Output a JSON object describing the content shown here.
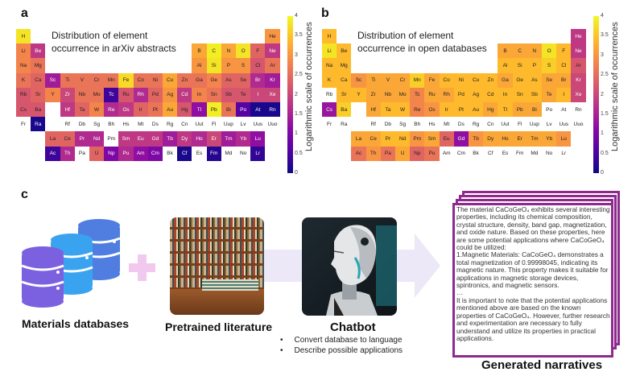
{
  "panel_a": {
    "label": "a",
    "title_line1": "Distribution of element",
    "title_line2": "occurrence in arXiv abstracts",
    "colorbar_label": "Logarithmic scale of occurrences",
    "colorbar_ticks": [
      "0",
      "0.5",
      "1",
      "1.5",
      "2",
      "2.5",
      "3",
      "3.5",
      "4"
    ],
    "colormap": "plasma",
    "values": {
      "H": 3.8,
      "He": 3.0,
      "Li": 2.8,
      "Be": 1.8,
      "B": 3.2,
      "C": 3.9,
      "N": 3.2,
      "O": 3.8,
      "F": 2.4,
      "Ne": 1.8,
      "Na": 2.8,
      "Mg": 2.6,
      "Al": 3.0,
      "Si": 3.8,
      "P": 3.0,
      "S": 3.0,
      "Cl": 2.2,
      "Ar": 2.6,
      "K": 2.6,
      "Ca": 2.4,
      "Sc": 1.4,
      "Ti": 2.6,
      "V": 2.6,
      "Cr": 2.6,
      "Mn": 2.6,
      "Fe": 3.7,
      "Co": 2.6,
      "Ni": 2.6,
      "Cu": 3.2,
      "Zn": 2.6,
      "Ga": 2.6,
      "Ge": 2.8,
      "As": 2.4,
      "Se": 2.4,
      "Br": 1.6,
      "Kr": 1.4,
      "Rb": 2.2,
      "Sr": 2.4,
      "Y": 2.8,
      "Zr": 2.0,
      "Nb": 2.6,
      "Mo": 2.6,
      "Tc": 0.4,
      "Ru": 2.2,
      "Rh": 1.6,
      "Pd": 2.4,
      "Ag": 3.0,
      "Cd": 1.8,
      "In": 2.8,
      "Sn": 2.6,
      "Sb": 2.2,
      "Te": 2.2,
      "I": 2.0,
      "Xe": 2.0,
      "Cs": 2.2,
      "Ba": 2.2,
      "Hf": 1.8,
      "Ta": 2.4,
      "W": 2.8,
      "Re": 1.6,
      "Os": 1.8,
      "Ir": 2.4,
      "Pt": 2.6,
      "Au": 3.2,
      "Hg": 2.2,
      "Tl": 1.2,
      "Pb": 3.9,
      "Bi": 2.6,
      "Po": 0.6,
      "At": 0.1,
      "Rn": 0.1,
      "Ra": 0.1,
      "La": 2.4,
      "Ce": 2.4,
      "Pr": 1.6,
      "Nd": 1.6,
      "Sm": 1.8,
      "Eu": 1.8,
      "Gd": 1.8,
      "Tb": 1.4,
      "Dy": 1.8,
      "Ho": 1.6,
      "Er": 2.0,
      "Tm": 1.4,
      "Yb": 1.6,
      "Lu": 1.2,
      "Ac": 0.4,
      "Th": 1.6,
      "U": 2.4,
      "Np": 1.0,
      "Pu": 1.6,
      "Am": 1.2,
      "Cm": 1.0,
      "Cf": 0.1,
      "Fm": 0.2,
      "Lr": 0.3
    }
  },
  "panel_b": {
    "label": "b",
    "title_line1": "Distribution of element",
    "title_line2": "occurrence in open databases",
    "colorbar_label": "Logarithmic scale of occurrences",
    "colorbar_ticks": [
      "0",
      "0.5",
      "1",
      "1.5",
      "2",
      "2.5",
      "3",
      "3.5",
      "4"
    ],
    "colormap": "plasma",
    "values": {
      "H": 3.4,
      "He": 1.8,
      "Li": 3.8,
      "Be": 3.4,
      "B": 3.2,
      "C": 3.2,
      "N": 3.2,
      "O": 3.8,
      "F": 3.4,
      "Ne": 1.8,
      "Na": 3.4,
      "Mg": 3.4,
      "Al": 3.4,
      "Si": 3.4,
      "P": 3.4,
      "S": 3.6,
      "Cl": 3.4,
      "Ar": 2.2,
      "K": 3.4,
      "Ca": 3.4,
      "Sc": 3.0,
      "Ti": 3.2,
      "V": 3.2,
      "Cr": 3.2,
      "Mn": 3.6,
      "Fe": 3.2,
      "Co": 3.4,
      "Ni": 3.4,
      "Cu": 3.4,
      "Zn": 3.4,
      "Ga": 3.2,
      "Ge": 3.4,
      "As": 3.4,
      "Se": 3.2,
      "Br": 3.2,
      "Kr": 2.0,
      "Sr": 3.4,
      "Y": 3.4,
      "Zr": 3.2,
      "Nb": 3.2,
      "Mo": 3.2,
      "Tc": 2.8,
      "Ru": 3.2,
      "Rh": 3.2,
      "Pd": 3.4,
      "Ag": 3.4,
      "Cd": 3.4,
      "In": 3.4,
      "Sn": 3.4,
      "Sb": 3.4,
      "Te": 3.2,
      "I": 3.4,
      "Xe": 2.0,
      "Cs": 1.3,
      "Ba": 3.6,
      "Hf": 3.2,
      "Ta": 3.4,
      "W": 3.4,
      "Re": 2.8,
      "Os": 3.0,
      "Ir": 3.4,
      "Pt": 3.4,
      "Au": 3.4,
      "Hg": 3.2,
      "Tl": 3.4,
      "Pb": 3.2,
      "Bi": 3.2,
      "La": 3.2,
      "Ce": 3.2,
      "Pr": 3.4,
      "Nd": 3.4,
      "Pm": 3.0,
      "Sm": 3.2,
      "Eu": 2.4,
      "Gd": 1.2,
      "Tb": 3.0,
      "Dy": 3.2,
      "Ho": 3.2,
      "Er": 3.2,
      "Tm": 3.2,
      "Yb": 3.2,
      "Lu": 3.0,
      "Ac": 2.6,
      "Th": 3.0,
      "Pa": 2.6,
      "U": 3.2,
      "Np": 2.4,
      "Pu": 2.6
    }
  },
  "elements": [
    "H",
    "He",
    "Li",
    "Be",
    "B",
    "C",
    "N",
    "O",
    "F",
    "Ne",
    "Na",
    "Mg",
    "Al",
    "Si",
    "P",
    "S",
    "Cl",
    "Ar",
    "K",
    "Ca",
    "Sc",
    "Ti",
    "V",
    "Cr",
    "Mn",
    "Fe",
    "Co",
    "Ni",
    "Cu",
    "Zn",
    "Ga",
    "Ge",
    "As",
    "Se",
    "Br",
    "Kr",
    "Rb",
    "Sr",
    "Y",
    "Zr",
    "Nb",
    "Mo",
    "Tc",
    "Ru",
    "Rh",
    "Pd",
    "Ag",
    "Cd",
    "In",
    "Sn",
    "Sb",
    "Te",
    "I",
    "Xe",
    "Cs",
    "Ba",
    "Hf",
    "Ta",
    "W",
    "Re",
    "Os",
    "Ir",
    "Pt",
    "Au",
    "Hg",
    "Tl",
    "Pb",
    "Bi",
    "Po",
    "At",
    "Rn",
    "Fr",
    "Ra",
    "Rf",
    "Db",
    "Sg",
    "Bh",
    "Hs",
    "Mt",
    "Ds",
    "Rg",
    "Cn",
    "Uut",
    "Fl",
    "Uup",
    "Lv",
    "Uus",
    "Uuo",
    "La",
    "Ce",
    "Pr",
    "Nd",
    "Pm",
    "Sm",
    "Eu",
    "Gd",
    "Tb",
    "Dy",
    "Ho",
    "Er",
    "Tm",
    "Yb",
    "Lu",
    "Ac",
    "Th",
    "Pa",
    "U",
    "Np",
    "Pu",
    "Am",
    "Cm",
    "Bk",
    "Cf",
    "Es",
    "Fm",
    "Md",
    "No",
    "Lr"
  ],
  "panel_c": {
    "label": "c",
    "databases_caption": "Materials databases",
    "literature_caption": "Pretrained literature",
    "chatbot_caption": "Chatbot",
    "chatbot_bullets": [
      "Convert database to language",
      "Describe possible applications"
    ],
    "narratives_caption": "Generated narratives",
    "narrative_paragraphs": [
      "The material CaCoGeO₄ exhibits several interesting properties, including its chemical composition, crystal structure, density, band gap, magnetization, and oxide nature. Based on these properties, here are some potential applications where CaCoGeO₄ could be utilized:",
      "1.Magnetic Materials: CaCoGeO₄ demonstrates a total magnetization of 0.99998045, indicating its magnetic nature. This property makes it suitable for applications in magnetic storage devices, spintronics, and magnetic sensors.",
      "…",
      "It is important to note that the potential applications mentioned above are based on the known properties of CaCoGeO₄. However, further research and experimentation are necessary to fully understand and utilize its properties in practical applications."
    ],
    "colors": {
      "card_border": "#8e2a8e",
      "arrow": "#ece8f8",
      "plus": "#f2c9ee",
      "db_purple": "#7b61e0",
      "db_cyan": "#3aa3f0",
      "db_blue": "#4f7ee0"
    }
  }
}
